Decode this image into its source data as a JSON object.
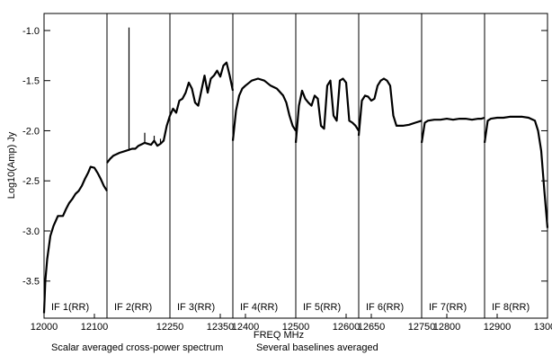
{
  "chart_data": {
    "type": "line",
    "title": "",
    "xlabel": "FREQ MHz",
    "ylabel": "Log10(Amp) Jy",
    "footer": {
      "left": "Scalar averaged cross-power spectrum",
      "right": "Several baselines averaged"
    },
    "x_ticks": [
      {
        "label": "12000",
        "value": 12000
      },
      {
        "label": "12100",
        "value": 12100
      },
      {
        "label": "12250",
        "value": 12250
      },
      {
        "label": "12350",
        "value": 12350
      },
      {
        "label": "12400",
        "value": 12400
      },
      {
        "label": "12500",
        "value": 12500
      },
      {
        "label": "12600",
        "value": 12600
      },
      {
        "label": "12650",
        "value": 12650
      },
      {
        "label": "12750",
        "value": 12750
      },
      {
        "label": "12800",
        "value": 12800
      },
      {
        "label": "12900",
        "value": 12900
      },
      {
        "label": "13000",
        "value": 13000
      }
    ],
    "y_ticks": [
      {
        "label": "-1.0",
        "value": -1.0
      },
      {
        "label": "-1.5",
        "value": -1.5
      },
      {
        "label": "-2.0",
        "value": -2.0
      },
      {
        "label": "-2.5",
        "value": -2.5
      },
      {
        "label": "-3.0",
        "value": -3.0
      },
      {
        "label": "-3.5",
        "value": -3.5
      }
    ],
    "ylim": [
      -3.87,
      -0.83
    ],
    "grid": false,
    "line_color": "#000000",
    "if_bands": [
      {
        "label": "IF 1(RR)",
        "points": [
          [
            0,
            -3.82
          ],
          [
            0.02,
            -3.5
          ],
          [
            0.05,
            -3.28
          ],
          [
            0.1,
            -3.05
          ],
          [
            0.15,
            -2.95
          ],
          [
            0.22,
            -2.85
          ],
          [
            0.3,
            -2.85
          ],
          [
            0.35,
            -2.78
          ],
          [
            0.4,
            -2.72
          ],
          [
            0.45,
            -2.68
          ],
          [
            0.5,
            -2.63
          ],
          [
            0.55,
            -2.6
          ],
          [
            0.6,
            -2.55
          ],
          [
            0.65,
            -2.48
          ],
          [
            0.7,
            -2.42
          ],
          [
            0.74,
            -2.36
          ],
          [
            0.8,
            -2.37
          ],
          [
            0.85,
            -2.42
          ],
          [
            0.9,
            -2.48
          ],
          [
            0.95,
            -2.55
          ],
          [
            1,
            -2.6
          ]
        ]
      },
      {
        "label": "IF 2(RR)",
        "points": [
          [
            0,
            -2.32
          ],
          [
            0.05,
            -2.28
          ],
          [
            0.1,
            -2.25
          ],
          [
            0.2,
            -2.22
          ],
          [
            0.3,
            -2.2
          ],
          [
            0.4,
            -2.18
          ],
          [
            0.45,
            -2.18
          ],
          [
            0.5,
            -2.15
          ],
          [
            0.6,
            -2.12
          ],
          [
            0.7,
            -2.14
          ],
          [
            0.75,
            -2.1
          ],
          [
            0.8,
            -2.15
          ],
          [
            0.85,
            -2.13
          ],
          [
            0.9,
            -2.1
          ],
          [
            0.95,
            -1.95
          ],
          [
            1,
            -1.85
          ]
        ],
        "spikes": [
          [
            0.35,
            -0.97
          ],
          [
            0.6,
            -2.02
          ],
          [
            0.75,
            -2.05
          ],
          [
            0.85,
            -2.08
          ]
        ]
      },
      {
        "label": "IF 3(RR)",
        "points": [
          [
            0,
            -1.85
          ],
          [
            0.05,
            -1.78
          ],
          [
            0.1,
            -1.82
          ],
          [
            0.15,
            -1.7
          ],
          [
            0.2,
            -1.68
          ],
          [
            0.25,
            -1.62
          ],
          [
            0.3,
            -1.52
          ],
          [
            0.35,
            -1.58
          ],
          [
            0.4,
            -1.72
          ],
          [
            0.45,
            -1.75
          ],
          [
            0.5,
            -1.6
          ],
          [
            0.55,
            -1.45
          ],
          [
            0.6,
            -1.62
          ],
          [
            0.65,
            -1.48
          ],
          [
            0.7,
            -1.45
          ],
          [
            0.75,
            -1.4
          ],
          [
            0.8,
            -1.46
          ],
          [
            0.85,
            -1.35
          ],
          [
            0.9,
            -1.32
          ],
          [
            0.95,
            -1.45
          ],
          [
            1,
            -1.6
          ]
        ]
      },
      {
        "label": "IF 4(RR)",
        "points": [
          [
            0,
            -2.1
          ],
          [
            0.05,
            -1.8
          ],
          [
            0.1,
            -1.65
          ],
          [
            0.15,
            -1.58
          ],
          [
            0.2,
            -1.55
          ],
          [
            0.3,
            -1.5
          ],
          [
            0.4,
            -1.48
          ],
          [
            0.5,
            -1.5
          ],
          [
            0.6,
            -1.55
          ],
          [
            0.7,
            -1.58
          ],
          [
            0.8,
            -1.65
          ],
          [
            0.85,
            -1.72
          ],
          [
            0.9,
            -1.85
          ],
          [
            0.95,
            -1.95
          ],
          [
            1,
            -2.0
          ]
        ]
      },
      {
        "label": "IF 5(RR)",
        "points": [
          [
            0,
            -2.12
          ],
          [
            0.05,
            -1.75
          ],
          [
            0.1,
            -1.6
          ],
          [
            0.15,
            -1.68
          ],
          [
            0.2,
            -1.72
          ],
          [
            0.25,
            -1.75
          ],
          [
            0.3,
            -1.65
          ],
          [
            0.35,
            -1.68
          ],
          [
            0.4,
            -1.95
          ],
          [
            0.45,
            -1.98
          ],
          [
            0.5,
            -1.55
          ],
          [
            0.55,
            -1.5
          ],
          [
            0.6,
            -1.85
          ],
          [
            0.65,
            -1.9
          ],
          [
            0.7,
            -1.5
          ],
          [
            0.75,
            -1.48
          ],
          [
            0.8,
            -1.52
          ],
          [
            0.85,
            -1.9
          ],
          [
            0.9,
            -1.92
          ],
          [
            0.95,
            -1.95
          ],
          [
            1,
            -2.0
          ]
        ]
      },
      {
        "label": "IF 6(RR)",
        "points": [
          [
            0,
            -2.05
          ],
          [
            0.05,
            -1.7
          ],
          [
            0.1,
            -1.65
          ],
          [
            0.15,
            -1.66
          ],
          [
            0.2,
            -1.7
          ],
          [
            0.25,
            -1.68
          ],
          [
            0.3,
            -1.55
          ],
          [
            0.35,
            -1.5
          ],
          [
            0.4,
            -1.48
          ],
          [
            0.45,
            -1.5
          ],
          [
            0.5,
            -1.55
          ],
          [
            0.55,
            -1.85
          ],
          [
            0.6,
            -1.95
          ],
          [
            0.7,
            -1.95
          ],
          [
            0.8,
            -1.94
          ],
          [
            0.9,
            -1.92
          ],
          [
            1,
            -1.9
          ]
        ]
      },
      {
        "label": "IF 7(RR)",
        "points": [
          [
            0,
            -2.12
          ],
          [
            0.05,
            -1.92
          ],
          [
            0.1,
            -1.9
          ],
          [
            0.2,
            -1.89
          ],
          [
            0.3,
            -1.89
          ],
          [
            0.4,
            -1.88
          ],
          [
            0.5,
            -1.89
          ],
          [
            0.6,
            -1.88
          ],
          [
            0.7,
            -1.88
          ],
          [
            0.8,
            -1.89
          ],
          [
            0.9,
            -1.88
          ],
          [
            0.95,
            -1.88
          ],
          [
            1,
            -1.87
          ]
        ]
      },
      {
        "label": "IF 8(RR)",
        "points": [
          [
            0,
            -2.12
          ],
          [
            0.05,
            -1.9
          ],
          [
            0.1,
            -1.88
          ],
          [
            0.2,
            -1.87
          ],
          [
            0.3,
            -1.87
          ],
          [
            0.4,
            -1.86
          ],
          [
            0.5,
            -1.86
          ],
          [
            0.6,
            -1.86
          ],
          [
            0.7,
            -1.87
          ],
          [
            0.8,
            -1.9
          ],
          [
            0.85,
            -2.0
          ],
          [
            0.9,
            -2.2
          ],
          [
            0.95,
            -2.6
          ],
          [
            1,
            -2.97
          ]
        ]
      }
    ]
  }
}
